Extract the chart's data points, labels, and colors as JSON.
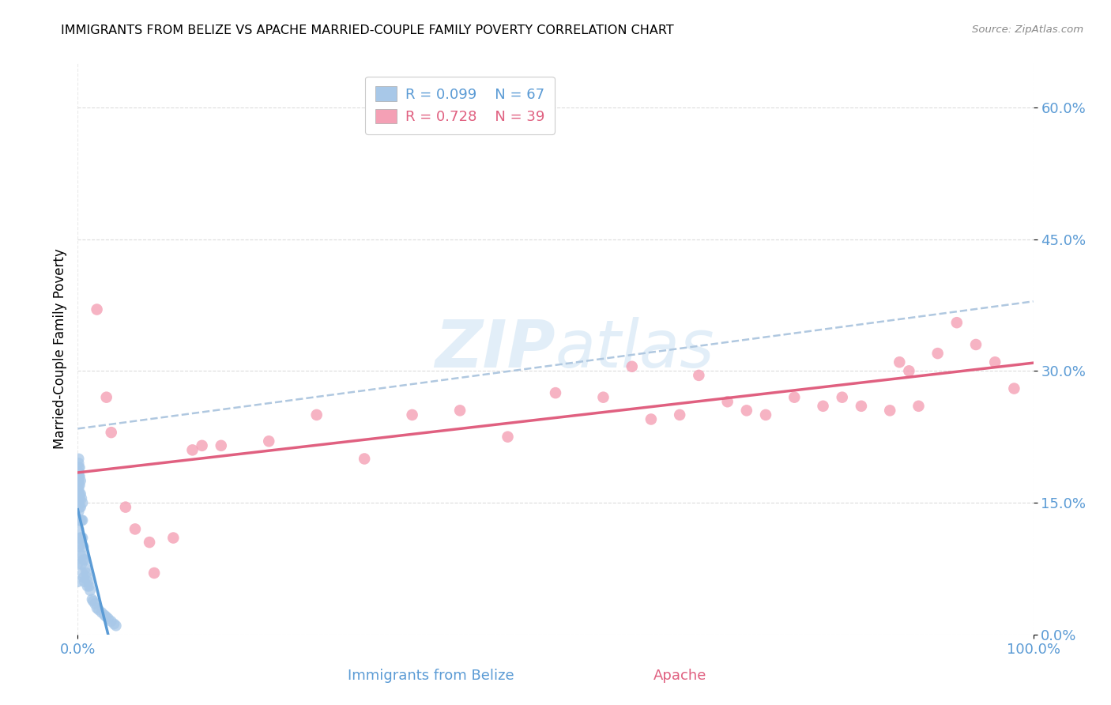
{
  "title": "IMMIGRANTS FROM BELIZE VS APACHE MARRIED-COUPLE FAMILY POVERTY CORRELATION CHART",
  "source": "Source: ZipAtlas.com",
  "ylabel_label": "Married-Couple Family Poverty",
  "xlabel_label_blue": "Immigrants from Belize",
  "xlabel_label_pink": "Apache",
  "legend_blue_R": "R = 0.099",
  "legend_blue_N": "N = 67",
  "legend_pink_R": "R = 0.728",
  "legend_pink_N": "N = 39",
  "blue_color": "#a8c8e8",
  "pink_color": "#f4a0b5",
  "blue_line_color": "#5b9bd5",
  "pink_line_color": "#e06080",
  "dashed_line_color": "#b0c8e0",
  "watermark_color": "#d0e4f4",
  "background_color": "#ffffff",
  "grid_color": "#d8d8d8",
  "blue_scatter_x": [
    0.0,
    0.0,
    0.001,
    0.001,
    0.001,
    0.001,
    0.001,
    0.001,
    0.001,
    0.001,
    0.001,
    0.001,
    0.001,
    0.001,
    0.001,
    0.001,
    0.001,
    0.001,
    0.001,
    0.002,
    0.002,
    0.002,
    0.002,
    0.002,
    0.002,
    0.002,
    0.002,
    0.002,
    0.003,
    0.003,
    0.003,
    0.003,
    0.003,
    0.003,
    0.004,
    0.004,
    0.004,
    0.004,
    0.005,
    0.005,
    0.005,
    0.005,
    0.005,
    0.006,
    0.006,
    0.006,
    0.007,
    0.008,
    0.008,
    0.009,
    0.01,
    0.01,
    0.011,
    0.012,
    0.013,
    0.015,
    0.016,
    0.018,
    0.02,
    0.022,
    0.025,
    0.028,
    0.03,
    0.032,
    0.035,
    0.038,
    0.04
  ],
  "blue_scatter_y": [
    0.08,
    0.06,
    0.1,
    0.12,
    0.13,
    0.14,
    0.15,
    0.155,
    0.16,
    0.165,
    0.17,
    0.175,
    0.175,
    0.18,
    0.18,
    0.185,
    0.19,
    0.195,
    0.2,
    0.1,
    0.11,
    0.13,
    0.145,
    0.155,
    0.16,
    0.17,
    0.18,
    0.19,
    0.09,
    0.11,
    0.13,
    0.145,
    0.16,
    0.175,
    0.08,
    0.11,
    0.13,
    0.155,
    0.07,
    0.09,
    0.11,
    0.13,
    0.15,
    0.065,
    0.085,
    0.1,
    0.06,
    0.075,
    0.085,
    0.07,
    0.055,
    0.065,
    0.06,
    0.055,
    0.05,
    0.04,
    0.038,
    0.035,
    0.03,
    0.028,
    0.025,
    0.022,
    0.02,
    0.018,
    0.015,
    0.012,
    0.01
  ],
  "pink_scatter_x": [
    0.02,
    0.03,
    0.035,
    0.05,
    0.06,
    0.075,
    0.08,
    0.1,
    0.12,
    0.13,
    0.15,
    0.2,
    0.25,
    0.3,
    0.35,
    0.4,
    0.45,
    0.5,
    0.55,
    0.58,
    0.6,
    0.63,
    0.65,
    0.68,
    0.7,
    0.72,
    0.75,
    0.78,
    0.8,
    0.82,
    0.85,
    0.86,
    0.87,
    0.88,
    0.9,
    0.92,
    0.94,
    0.96,
    0.98
  ],
  "pink_scatter_y": [
    0.37,
    0.27,
    0.23,
    0.145,
    0.12,
    0.105,
    0.07,
    0.11,
    0.21,
    0.215,
    0.215,
    0.22,
    0.25,
    0.2,
    0.25,
    0.255,
    0.225,
    0.275,
    0.27,
    0.305,
    0.245,
    0.25,
    0.295,
    0.265,
    0.255,
    0.25,
    0.27,
    0.26,
    0.27,
    0.26,
    0.255,
    0.31,
    0.3,
    0.26,
    0.32,
    0.355,
    0.33,
    0.31,
    0.28
  ],
  "xlim": [
    0.0,
    1.0
  ],
  "ylim": [
    0.0,
    0.65
  ],
  "yticks": [
    0.0,
    0.15,
    0.3,
    0.45,
    0.6
  ],
  "ytick_labels": [
    "0.0%",
    "15.0%",
    "30.0%",
    "45.0%",
    "60.0%"
  ],
  "xtick_vals": [
    0.0,
    1.0
  ],
  "xtick_labels": [
    "0.0%",
    "100.0%"
  ]
}
